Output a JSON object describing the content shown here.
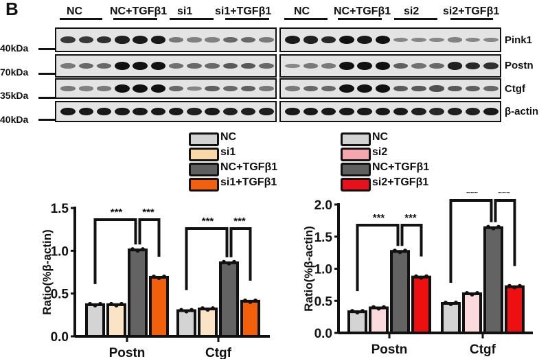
{
  "panel_letter": "B",
  "blot": {
    "left_groups": [
      "NC",
      "NC+TGFβ1",
      "si1",
      "si1+TGFβ1"
    ],
    "right_groups": [
      "NC",
      "NC+TGFβ1",
      "si2",
      "si2+TGFβ1"
    ],
    "proteins": [
      "Pink1",
      "Postn",
      "Ctgf",
      "β-actin"
    ],
    "mw_markers": [
      "40kDa",
      "70kDa",
      "35kDa",
      "40kDa"
    ],
    "left_intensity": [
      [
        0.75,
        0.75,
        0.8,
        0.9,
        0.95,
        0.95,
        0.35,
        0.3,
        0.3,
        0.45,
        0.45,
        0.35
      ],
      [
        0.35,
        0.45,
        0.45,
        1,
        1,
        1,
        0.4,
        0.45,
        0.45,
        0.55,
        0.55,
        0.45
      ],
      [
        0.35,
        0.3,
        0.35,
        1,
        1,
        1,
        0.45,
        0.25,
        0.5,
        0.45,
        0.5,
        0.35
      ],
      [
        0.95,
        0.95,
        0.95,
        0.95,
        0.95,
        0.95,
        0.95,
        0.9,
        0.95,
        0.9,
        0.9,
        0.9
      ]
    ],
    "right_intensity": [
      [
        0.95,
        0.9,
        0.85,
        1,
        0.95,
        1,
        0.25,
        0.25,
        0.25,
        0.3,
        0.25,
        0.25
      ],
      [
        0.25,
        0.35,
        0.35,
        1,
        1,
        1,
        0.5,
        0.4,
        0.45,
        0.9,
        0.85,
        0.8
      ],
      [
        0.35,
        0.45,
        0.45,
        1,
        1,
        1,
        0.55,
        0.55,
        0.6,
        0.55,
        0.5,
        0.45
      ],
      [
        0.95,
        0.95,
        0.95,
        0.95,
        0.95,
        0.95,
        0.95,
        0.9,
        0.85,
        0.9,
        0.9,
        0.95
      ]
    ]
  },
  "legends": [
    {
      "items": [
        {
          "label": "NC",
          "color": "#d3d3d3"
        },
        {
          "label": "si1",
          "color": "#f8d8a8"
        },
        {
          "label": "NC+TGFβ1",
          "color": "#5f5f5f"
        },
        {
          "label": "si1+TGFβ1",
          "color": "#f06010"
        }
      ]
    },
    {
      "items": [
        {
          "label": "NC",
          "color": "#d3d3d3"
        },
        {
          "label": "si2",
          "color": "#f3a6ae"
        },
        {
          "label": "NC+TGFβ1",
          "color": "#5f5f5f"
        },
        {
          "label": "si2+TGFβ1",
          "color": "#e8101a"
        }
      ]
    }
  ],
  "chart_data": [
    {
      "type": "bar",
      "title": "",
      "xlabel": "",
      "ylabel": "Ratio(%β-actin)",
      "ylim": [
        0,
        1.5
      ],
      "yticks": [
        "0.0",
        "0.5",
        "1.0",
        "1.5"
      ],
      "categories": [
        "Postn",
        "Ctgf"
      ],
      "grid": false,
      "series": [
        {
          "name": "NC",
          "color": "#d3d3d3",
          "bar_color": "#d4d4d4",
          "values": [
            0.37,
            0.3
          ]
        },
        {
          "name": "si1",
          "color": "#f8d8a8",
          "bar_color": "#fbe3c6",
          "values": [
            0.37,
            0.32
          ]
        },
        {
          "name": "NC+TGFβ1",
          "color": "#5f5f5f",
          "bar_color": "#636363",
          "values": [
            1.01,
            0.86
          ]
        },
        {
          "name": "si1+TGFβ1",
          "color": "#f06010",
          "bar_color": "#f2600c",
          "values": [
            0.69,
            0.41
          ]
        }
      ],
      "annotations": [
        {
          "category": "Postn",
          "compare": [
            "NC",
            "NC+TGFβ1"
          ],
          "label": "***"
        },
        {
          "category": "Postn",
          "compare": [
            "NC+TGFβ1",
            "si1+TGFβ1"
          ],
          "label": "***"
        },
        {
          "category": "Ctgf",
          "compare": [
            "NC",
            "NC+TGFβ1"
          ],
          "label": "***"
        },
        {
          "category": "Ctgf",
          "compare": [
            "NC+TGFβ1",
            "si1+TGFβ1"
          ],
          "label": "***"
        }
      ]
    },
    {
      "type": "bar",
      "title": "",
      "xlabel": "",
      "ylabel": "Ratio(%β-actin)",
      "ylim": [
        0,
        2.0
      ],
      "yticks": [
        "0.0",
        "0.5",
        "1.0",
        "1.5",
        "2.0"
      ],
      "categories": [
        "Postn",
        "Ctgf"
      ],
      "grid": false,
      "series": [
        {
          "name": "NC",
          "color": "#d3d3d3",
          "bar_color": "#d4d4d4",
          "values": [
            0.33,
            0.46
          ]
        },
        {
          "name": "si2",
          "color": "#f3a6ae",
          "bar_color": "#fadadd",
          "values": [
            0.39,
            0.61
          ]
        },
        {
          "name": "NC+TGFβ1",
          "color": "#5f5f5f",
          "bar_color": "#636363",
          "values": [
            1.27,
            1.64
          ]
        },
        {
          "name": "si2+TGFβ1",
          "color": "#e8101a",
          "bar_color": "#ee1010",
          "values": [
            0.87,
            0.72
          ]
        }
      ],
      "annotations": [
        {
          "category": "Postn",
          "compare": [
            "NC",
            "NC+TGFβ1"
          ],
          "label": "***"
        },
        {
          "category": "Postn",
          "compare": [
            "NC+TGFβ1",
            "si2+TGFβ1"
          ],
          "label": "***"
        },
        {
          "category": "Ctgf",
          "compare": [
            "NC",
            "NC+TGFβ1"
          ],
          "label": "***"
        },
        {
          "category": "Ctgf",
          "compare": [
            "NC+TGFβ1",
            "si2+TGFβ1"
          ],
          "label": "***"
        }
      ]
    }
  ]
}
